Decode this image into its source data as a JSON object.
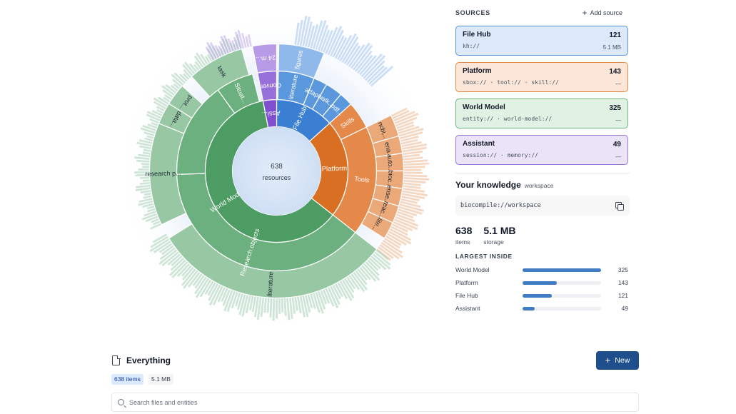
{
  "center": {
    "count": "638",
    "label": "resources"
  },
  "colors": {
    "filehub": "#4a86cf",
    "platform": "#d9782d",
    "worldmodel": "#55a36a",
    "assistant": "#8a5cc9",
    "button": "#1e4e8c"
  },
  "sunburst": {
    "segments": [
      {
        "id": "s-filehub",
        "label": "File Hub",
        "ring": 1,
        "value": 121,
        "group": "filehub"
      },
      {
        "id": "s-platform",
        "label": "Platform",
        "ring": 1,
        "value": 143,
        "group": "platform"
      },
      {
        "id": "s-worldmodel",
        "label": "World Model",
        "ring": 1,
        "value": 325,
        "group": "worldmodel"
      },
      {
        "id": "s-assistant",
        "label": "Assi...",
        "ring": 1,
        "value": 49,
        "group": "assistant"
      },
      {
        "id": "s-pdf",
        "label": ".pdf...",
        "ring": 2,
        "value": 12,
        "group": "filehub"
      },
      {
        "id": "s-walk",
        "label": "walk...",
        "ring": 2,
        "value": 16,
        "group": "filehub"
      },
      {
        "id": "s-adap",
        "label": "adap...",
        "ring": 2,
        "value": 16,
        "group": "filehub"
      },
      {
        "id": "s-literature-fh",
        "label": "literature",
        "ring": 2,
        "value": 30,
        "group": "filehub"
      },
      {
        "id": "s-figures",
        "label": "figures",
        "ring": 2,
        "value": 40,
        "group": "filehub"
      },
      {
        "id": "s-fh-small",
        "label": "",
        "ring": 2,
        "value": 7,
        "group": "filehub"
      },
      {
        "id": "s-skills",
        "label": "Skills",
        "ring": 2,
        "value": 31,
        "group": "platform"
      },
      {
        "id": "s-tools",
        "label": "Tools",
        "ring": 2,
        "value": 112,
        "group": "platform"
      },
      {
        "id": "s-ncbi",
        "label": "ncbi...",
        "ring": 3,
        "value": 20,
        "group": "platform"
      },
      {
        "id": "s-ena",
        "label": "ena",
        "ring": 3,
        "value": 13,
        "group": "platform"
      },
      {
        "id": "s-auto",
        "label": "auto...",
        "ring": 3,
        "value": 14,
        "group": "platform"
      },
      {
        "id": "s-bioc",
        "label": "bioc...",
        "ring": 3,
        "value": 13,
        "group": "platform"
      },
      {
        "id": "s-ense",
        "label": "ense...",
        "ring": 3,
        "value": 13,
        "group": "platform"
      },
      {
        "id": "s-reac",
        "label": "reac...",
        "ring": 3,
        "value": 13,
        "group": "platform"
      },
      {
        "id": "s-lite",
        "label": "lite...",
        "ring": 3,
        "value": 11,
        "group": "platform"
      },
      {
        "id": "s-research-objects",
        "label": "Research objects",
        "ring": 2,
        "value": 215,
        "group": "worldmodel"
      },
      {
        "id": "s-situat",
        "label": "Situat...",
        "ring": 2,
        "value": 30,
        "group": "worldmodel"
      },
      {
        "id": "s-wm-other",
        "label": "",
        "ring": 2,
        "value": 80,
        "group": "worldmodel"
      },
      {
        "id": "s-literature-wm",
        "label": "literature",
        "ring": 3,
        "value": 150,
        "group": "worldmodel"
      },
      {
        "id": "s-research-p",
        "label": "research p...",
        "ring": 3,
        "value": 40,
        "group": "worldmodel"
      },
      {
        "id": "s-data",
        "label": "data...",
        "ring": 3,
        "value": 12,
        "group": "worldmodel"
      },
      {
        "id": "s-prot",
        "label": "prot...",
        "ring": 3,
        "value": 12,
        "group": "worldmodel"
      },
      {
        "id": "s-task",
        "label": "task",
        "ring": 3,
        "value": 20,
        "group": "worldmodel"
      },
      {
        "id": "s-conver",
        "label": "Conver...",
        "ring": 2,
        "value": 24,
        "group": "assistant"
      },
      {
        "id": "s-24m",
        "label": "24 m...",
        "ring": 3,
        "value": 24,
        "group": "assistant"
      }
    ]
  },
  "sources": {
    "title": "SOURCES",
    "add_label": "Add source",
    "items": [
      {
        "name": "File Hub",
        "count": "121",
        "uri": "kh://",
        "size": "5.1 MB",
        "bg": "#dbe9f8",
        "border": "#5b93d6"
      },
      {
        "name": "Platform",
        "count": "143",
        "uri": "sbox:// · tool:// · skill://",
        "size": "—",
        "bg": "#fbe6d8",
        "border": "#e08a4c"
      },
      {
        "name": "World Model",
        "count": "325",
        "uri": "entity:// · world-model://",
        "size": "—",
        "bg": "#e1f1e4",
        "border": "#6fb37f"
      },
      {
        "name": "Assistant",
        "count": "49",
        "uri": "session:// · memory://",
        "size": "—",
        "bg": "#ebe3f7",
        "border": "#9a77d1"
      }
    ]
  },
  "knowledge": {
    "title": "Your knowledge",
    "scope": "workspace",
    "uri": "biocompile://workspace"
  },
  "stats": {
    "items_value": "638",
    "items_label": "items",
    "storage_value": "5.1 MB",
    "storage_label": "storage"
  },
  "largest": {
    "title": "LARGEST INSIDE",
    "rows": [
      {
        "name": "World Model",
        "value": "325",
        "fraction": 1.0
      },
      {
        "name": "Platform",
        "value": "143",
        "fraction": 0.44
      },
      {
        "name": "File Hub",
        "value": "121",
        "fraction": 0.37
      },
      {
        "name": "Assistant",
        "value": "49",
        "fraction": 0.15
      }
    ]
  },
  "bottom": {
    "title": "Everything",
    "new_label": "New",
    "chip_items": "638 items",
    "chip_size": "5.1 MB",
    "search_placeholder": "Search files and entities"
  }
}
